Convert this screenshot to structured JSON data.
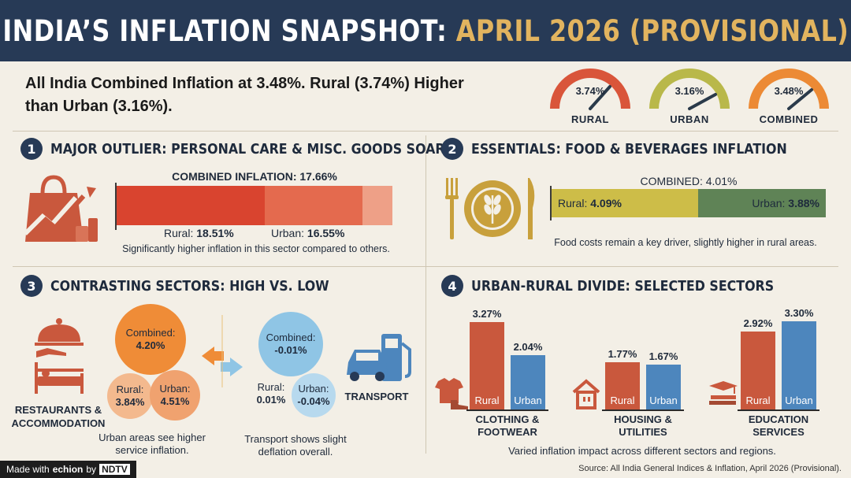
{
  "header": {
    "title_main": "INDIA’S INFLATION SNAPSHOT: ",
    "title_accent": "APRIL 2026 (PROVISIONAL)"
  },
  "headline": "All India Combined Inflation at 3.48%. Rural (3.74%) Higher than Urban (3.16%).",
  "gauges": [
    {
      "label": "RURAL",
      "value": "3.74%",
      "color": "#d9553a"
    },
    {
      "label": "URBAN",
      "value": "3.16%",
      "color": "#b9b84a"
    },
    {
      "label": "COMBINED",
      "value": "3.48%",
      "color": "#ec8a35"
    }
  ],
  "section1": {
    "number": "1",
    "title": "MAJOR OUTLIER: PERSONAL CARE & MISC. GOODS SOARS",
    "combined": "COMBINED INFLATION: 17.66%",
    "rural_label": "Rural:",
    "rural_value": "18.51%",
    "urban_label": "Urban:",
    "urban_value": "16.55%",
    "note": "Significantly higher inflation in this sector compared to others.",
    "icon": "shopping-bag-growth-icon",
    "colors": {
      "rural": "#d9442f",
      "urban": "#e46a4e",
      "tail": "#eea087"
    }
  },
  "section2": {
    "number": "2",
    "title": "ESSENTIALS: FOOD & BEVERAGES INFLATION",
    "combined": "COMBINED: 4.01%",
    "rural_label": "Rural:",
    "rural_value": "4.09%",
    "urban_label": "Urban:",
    "urban_value": "3.88%",
    "note": "Food costs remain a key driver, slightly higher in rural areas.",
    "icon": "plate-fork-knife-wheat-icon",
    "colors": {
      "rural": "#cdbd48",
      "urban": "#5f8356"
    }
  },
  "section3": {
    "number": "3",
    "title": "CONTRASTING SECTORS: HIGH VS. LOW",
    "left": {
      "label": "RESTAURANTS & ACCOMMODATION",
      "combined_label": "Combined:",
      "combined_value": "4.20%",
      "rural_label": "Rural:",
      "rural_value": "3.84%",
      "urban_label": "Urban:",
      "urban_value": "4.51%",
      "note": "Urban areas see higher service inflation."
    },
    "right": {
      "label": "TRANSPORT",
      "combined_label": "Combined:",
      "combined_value": "-0.01%",
      "rural_label": "Rural:",
      "rural_value": "0.01%",
      "urban_label": "Urban:",
      "urban_value": "-0.04%",
      "note": "Transport shows slight deflation overall."
    }
  },
  "section4": {
    "number": "4",
    "title": "URBAN-RURAL DIVIDE: SELECTED SECTORS",
    "rural_bar_label": "Rural",
    "urban_bar_label": "Urban",
    "groups": [
      {
        "name": "CLOTHING & FOOTWEAR",
        "rural": 3.27,
        "urban": 2.04,
        "rural_text": "3.27%",
        "urban_text": "2.04%"
      },
      {
        "name": "HOUSING & UTILITIES",
        "rural": 1.77,
        "urban": 1.67,
        "rural_text": "1.77%",
        "urban_text": "1.67%"
      },
      {
        "name": "EDUCATION SERVICES",
        "rural": 2.92,
        "urban": 3.3,
        "rural_text": "2.92%",
        "urban_text": "3.30%"
      }
    ],
    "note": "Varied inflation impact across different sectors and regions.",
    "colors": {
      "rural": "#c9583d",
      "urban": "#4d86bd"
    }
  },
  "footer": {
    "made_with": "Made with",
    "brand": "echion",
    "by": "by",
    "ndtv": "NDTV",
    "source": "Source: All India General Indices & Inflation, April 2026 (Provisional)."
  }
}
